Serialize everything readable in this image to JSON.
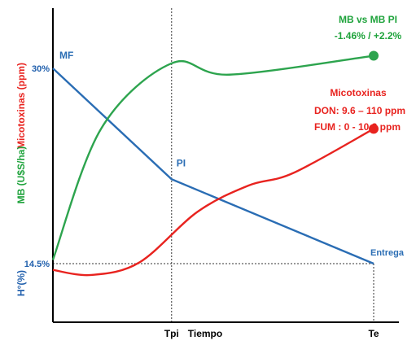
{
  "chart_data": {
    "type": "line",
    "xlabel": "Tiempo",
    "x_ticks": [
      "Tpi",
      "Te"
    ],
    "ylabels": [
      {
        "text": "Micotoxinas (ppm)",
        "color": "#e8231f"
      },
      {
        "text": "MB (U$S/ha)",
        "color": "#1fa33c"
      },
      {
        "text": "H°(%)",
        "color": "#2160ad"
      }
    ],
    "y_ticks": [
      "30%",
      "14.5%"
    ],
    "series": [
      {
        "key": "humidity",
        "color": "#2a6db4",
        "points": [
          [
            0,
            30
          ],
          [
            0.37,
            21.2
          ],
          [
            1.0,
            14.5
          ]
        ],
        "point_labels": [
          "MF",
          "PI",
          "Entrega"
        ]
      },
      {
        "key": "mb",
        "color": "#2da44e",
        "points": [
          [
            0,
            14.8
          ],
          [
            0.15,
            25.2
          ],
          [
            0.37,
            30.4
          ],
          [
            0.55,
            29.5
          ],
          [
            1.0,
            31.0
          ]
        ],
        "end_marker": true
      },
      {
        "key": "mycotoxins",
        "color": "#e8231f",
        "points": [
          [
            0,
            14.0
          ],
          [
            0.12,
            13.6
          ],
          [
            0.27,
            14.6
          ],
          [
            0.45,
            18.6
          ],
          [
            0.61,
            20.7
          ],
          [
            0.75,
            21.7
          ],
          [
            1.0,
            25.2
          ]
        ],
        "end_marker": true
      }
    ],
    "annotations": [
      {
        "key": "mb_title",
        "text": "MB vs MB PI",
        "color": "#1fa33c"
      },
      {
        "key": "mb_value",
        "text": "-1.46% / +2.2%",
        "color": "#1fa33c"
      },
      {
        "key": "myco_title",
        "text": "Micotoxinas",
        "color": "#e8231f"
      },
      {
        "key": "myco_don",
        "text": "DON: 9.6 – 110 ppm",
        "color": "#e8231f"
      },
      {
        "key": "myco_fum",
        "text": "FUM : 0 - 10.2 ppm",
        "color": "#e8231f"
      }
    ],
    "xlim": [
      0,
      1
    ],
    "ylim": [
      10,
      34
    ],
    "reference_lines": {
      "vertical_x": [
        0.37,
        1.0
      ],
      "horizontal_y": [
        14.5
      ]
    }
  }
}
